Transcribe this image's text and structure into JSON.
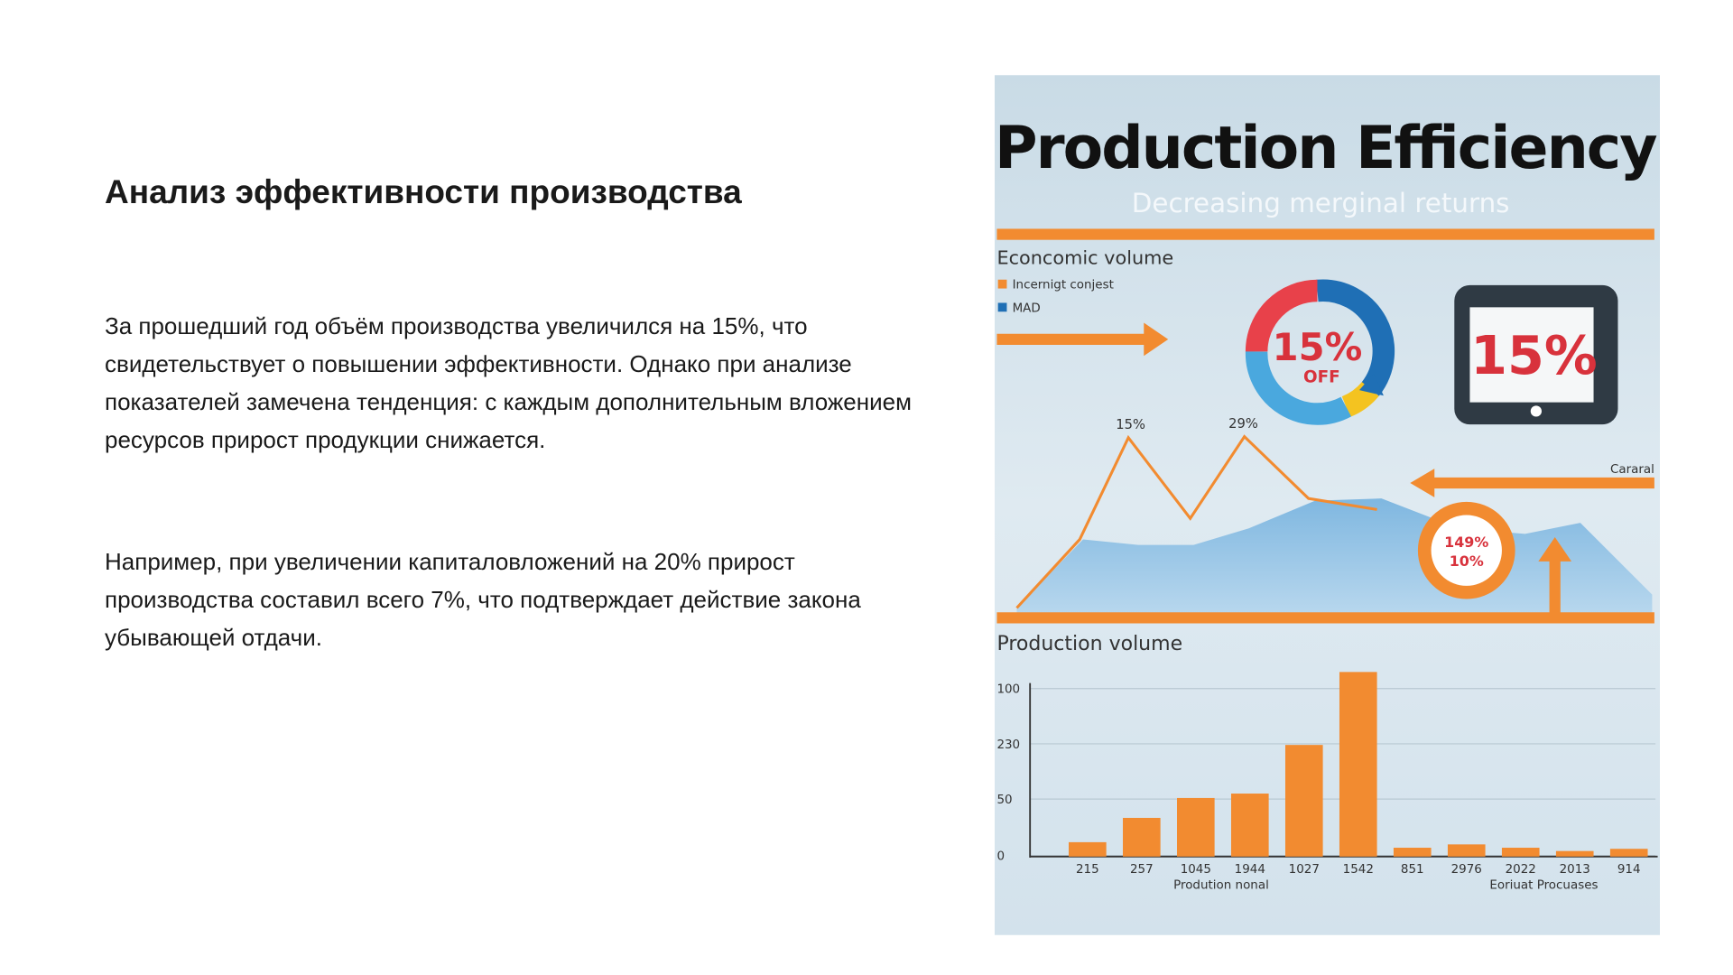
{
  "slide": {
    "title": "Анализ эффективности производства",
    "paragraphs": [
      "За прошедший год объём производства увеличился на 15%, что свидетельствует о повышении эффективности. Однако при анализе показателей замечена тенденция: с каждым дополнительным вложением ресурсов прирост продукции снижается.",
      "Например, при увеличении капиталовложений на 20% прирост производства составил всего 7%, что подтверждает действие закона убывающей отдачи."
    ]
  },
  "image": {
    "title": "Production Efficiency",
    "subtitle": "Decreasing merginal returns",
    "section1": "Econcomic volume",
    "legend": [
      "Incernigt conjest",
      "MAD"
    ],
    "donut_label": "15%",
    "donut_sub": "OFF",
    "tablet_label": "15%",
    "peak_labels": [
      "15%",
      "29%"
    ],
    "side_label": "Cararal",
    "small_donut": [
      "149%",
      "10%"
    ],
    "section2": "Production volume",
    "axis_ticks": [
      "100",
      "230",
      "50",
      "0"
    ],
    "x_labels": [
      "215",
      "257",
      "1045",
      "1944",
      "1027",
      "1542",
      "851",
      "2976",
      "2022",
      "2013",
      "914"
    ],
    "x_captions": [
      "Prodution nonal",
      "Eoriuat Procuases"
    ]
  }
}
